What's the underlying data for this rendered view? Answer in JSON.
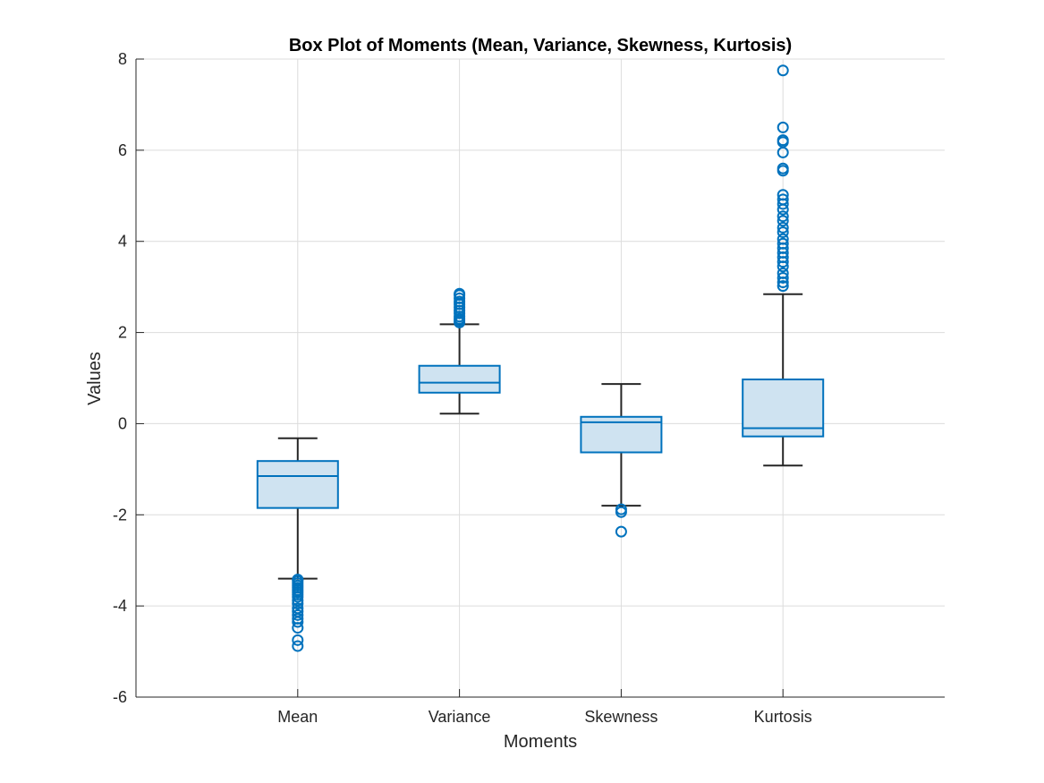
{
  "chart_data": {
    "type": "box",
    "title": "Box Plot of Moments (Mean, Variance, Skewness, Kurtosis)",
    "xlabel": "Moments",
    "ylabel": "Values",
    "ylim": [
      -6,
      8
    ],
    "yticks": [
      -6,
      -4,
      -2,
      0,
      2,
      4,
      6,
      8
    ],
    "ytick_labels": [
      "-6",
      "-4",
      "-2",
      "0",
      "2",
      "4",
      "6",
      "8"
    ],
    "grid": true,
    "colors": {
      "box_edge": "#0072BD",
      "box_fill": "#CFE3F1",
      "whisker": "#262626",
      "outlier": "#0072BD",
      "grid": "#DCDCDC",
      "axis": "#262626"
    },
    "categories": [
      "Mean",
      "Variance",
      "Skewness",
      "Kurtosis"
    ],
    "boxes": [
      {
        "category": "Mean",
        "whisker_low": -3.4,
        "q1": -1.85,
        "median": -1.15,
        "q3": -0.82,
        "whisker_high": -0.32,
        "outliers": [
          -3.42,
          -3.45,
          -3.5,
          -3.55,
          -3.6,
          -3.65,
          -3.7,
          -3.75,
          -3.8,
          -3.88,
          -3.95,
          -4.05,
          -4.12,
          -4.2,
          -4.28,
          -4.35,
          -4.48,
          -4.75,
          -4.88
        ]
      },
      {
        "category": "Variance",
        "whisker_low": 0.22,
        "q1": 0.68,
        "median": 0.9,
        "q3": 1.27,
        "whisker_high": 2.18,
        "outliers": [
          2.22,
          2.26,
          2.3,
          2.35,
          2.42,
          2.48,
          2.55,
          2.62,
          2.68,
          2.75,
          2.82,
          2.85
        ]
      },
      {
        "category": "Skewness",
        "whisker_low": -1.8,
        "q1": -0.63,
        "median": 0.03,
        "q3": 0.15,
        "whisker_high": 0.87,
        "outliers": [
          -1.88,
          -1.94,
          -2.37
        ]
      },
      {
        "category": "Kurtosis",
        "whisker_low": -0.92,
        "q1": -0.28,
        "median": -0.1,
        "q3": 0.97,
        "whisker_high": 2.84,
        "outliers": [
          3.02,
          3.1,
          3.2,
          3.3,
          3.45,
          3.55,
          3.65,
          3.75,
          3.85,
          3.95,
          4.05,
          4.2,
          4.3,
          4.45,
          4.55,
          4.7,
          4.82,
          4.92,
          5.02,
          5.55,
          5.6,
          5.95,
          6.18,
          6.22,
          6.5,
          7.75
        ]
      }
    ]
  }
}
